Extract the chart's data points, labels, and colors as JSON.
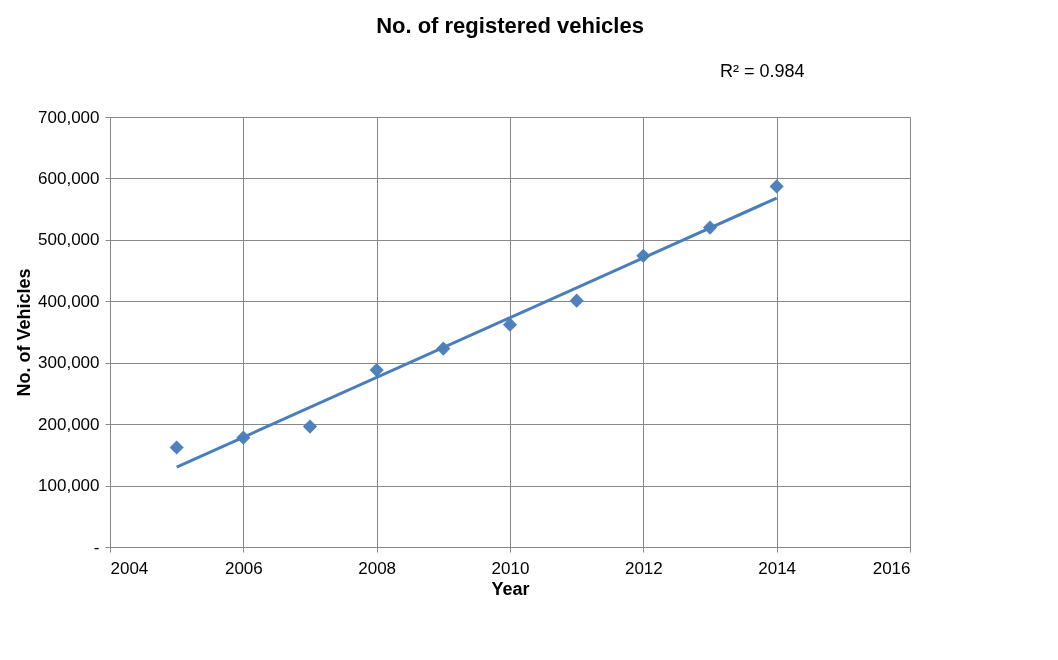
{
  "chart_data": {
    "type": "scatter",
    "title": "No. of registered vehicles",
    "xlabel": "Year",
    "ylabel": "No. of  Vehicles",
    "annotations": [
      "R² = 0.984"
    ],
    "x": [
      2005,
      2006,
      2007,
      2008,
      2009,
      2010,
      2011,
      2012,
      2013,
      2014
    ],
    "series": [
      {
        "color": "#4f81bd",
        "marker": "diamond",
        "values": [
          162000,
          178000,
          196000,
          288000,
          323000,
          362000,
          401000,
          474000,
          520000,
          587000
        ]
      },
      {
        "type": "line",
        "color": "#4a7ebb",
        "line_style": "solid",
        "x": [
          2005,
          2014
        ],
        "values": [
          130000,
          568000
        ]
      }
    ],
    "xlim": [
      2004,
      2016
    ],
    "xticks": [
      2004,
      2006,
      2008,
      2010,
      2012,
      2014,
      2016
    ],
    "ylim": [
      0,
      700000
    ],
    "yticks": [
      {
        "value": 0,
        "label": "-"
      },
      {
        "value": 100000,
        "label": "100,000"
      },
      {
        "value": 200000,
        "label": "200,000"
      },
      {
        "value": 300000,
        "label": "300,000"
      },
      {
        "value": 400000,
        "label": "400,000"
      },
      {
        "value": 500000,
        "label": "500,000"
      },
      {
        "value": 600000,
        "label": "600,000"
      },
      {
        "value": 700000,
        "label": "700,000"
      }
    ],
    "grid": true
  }
}
